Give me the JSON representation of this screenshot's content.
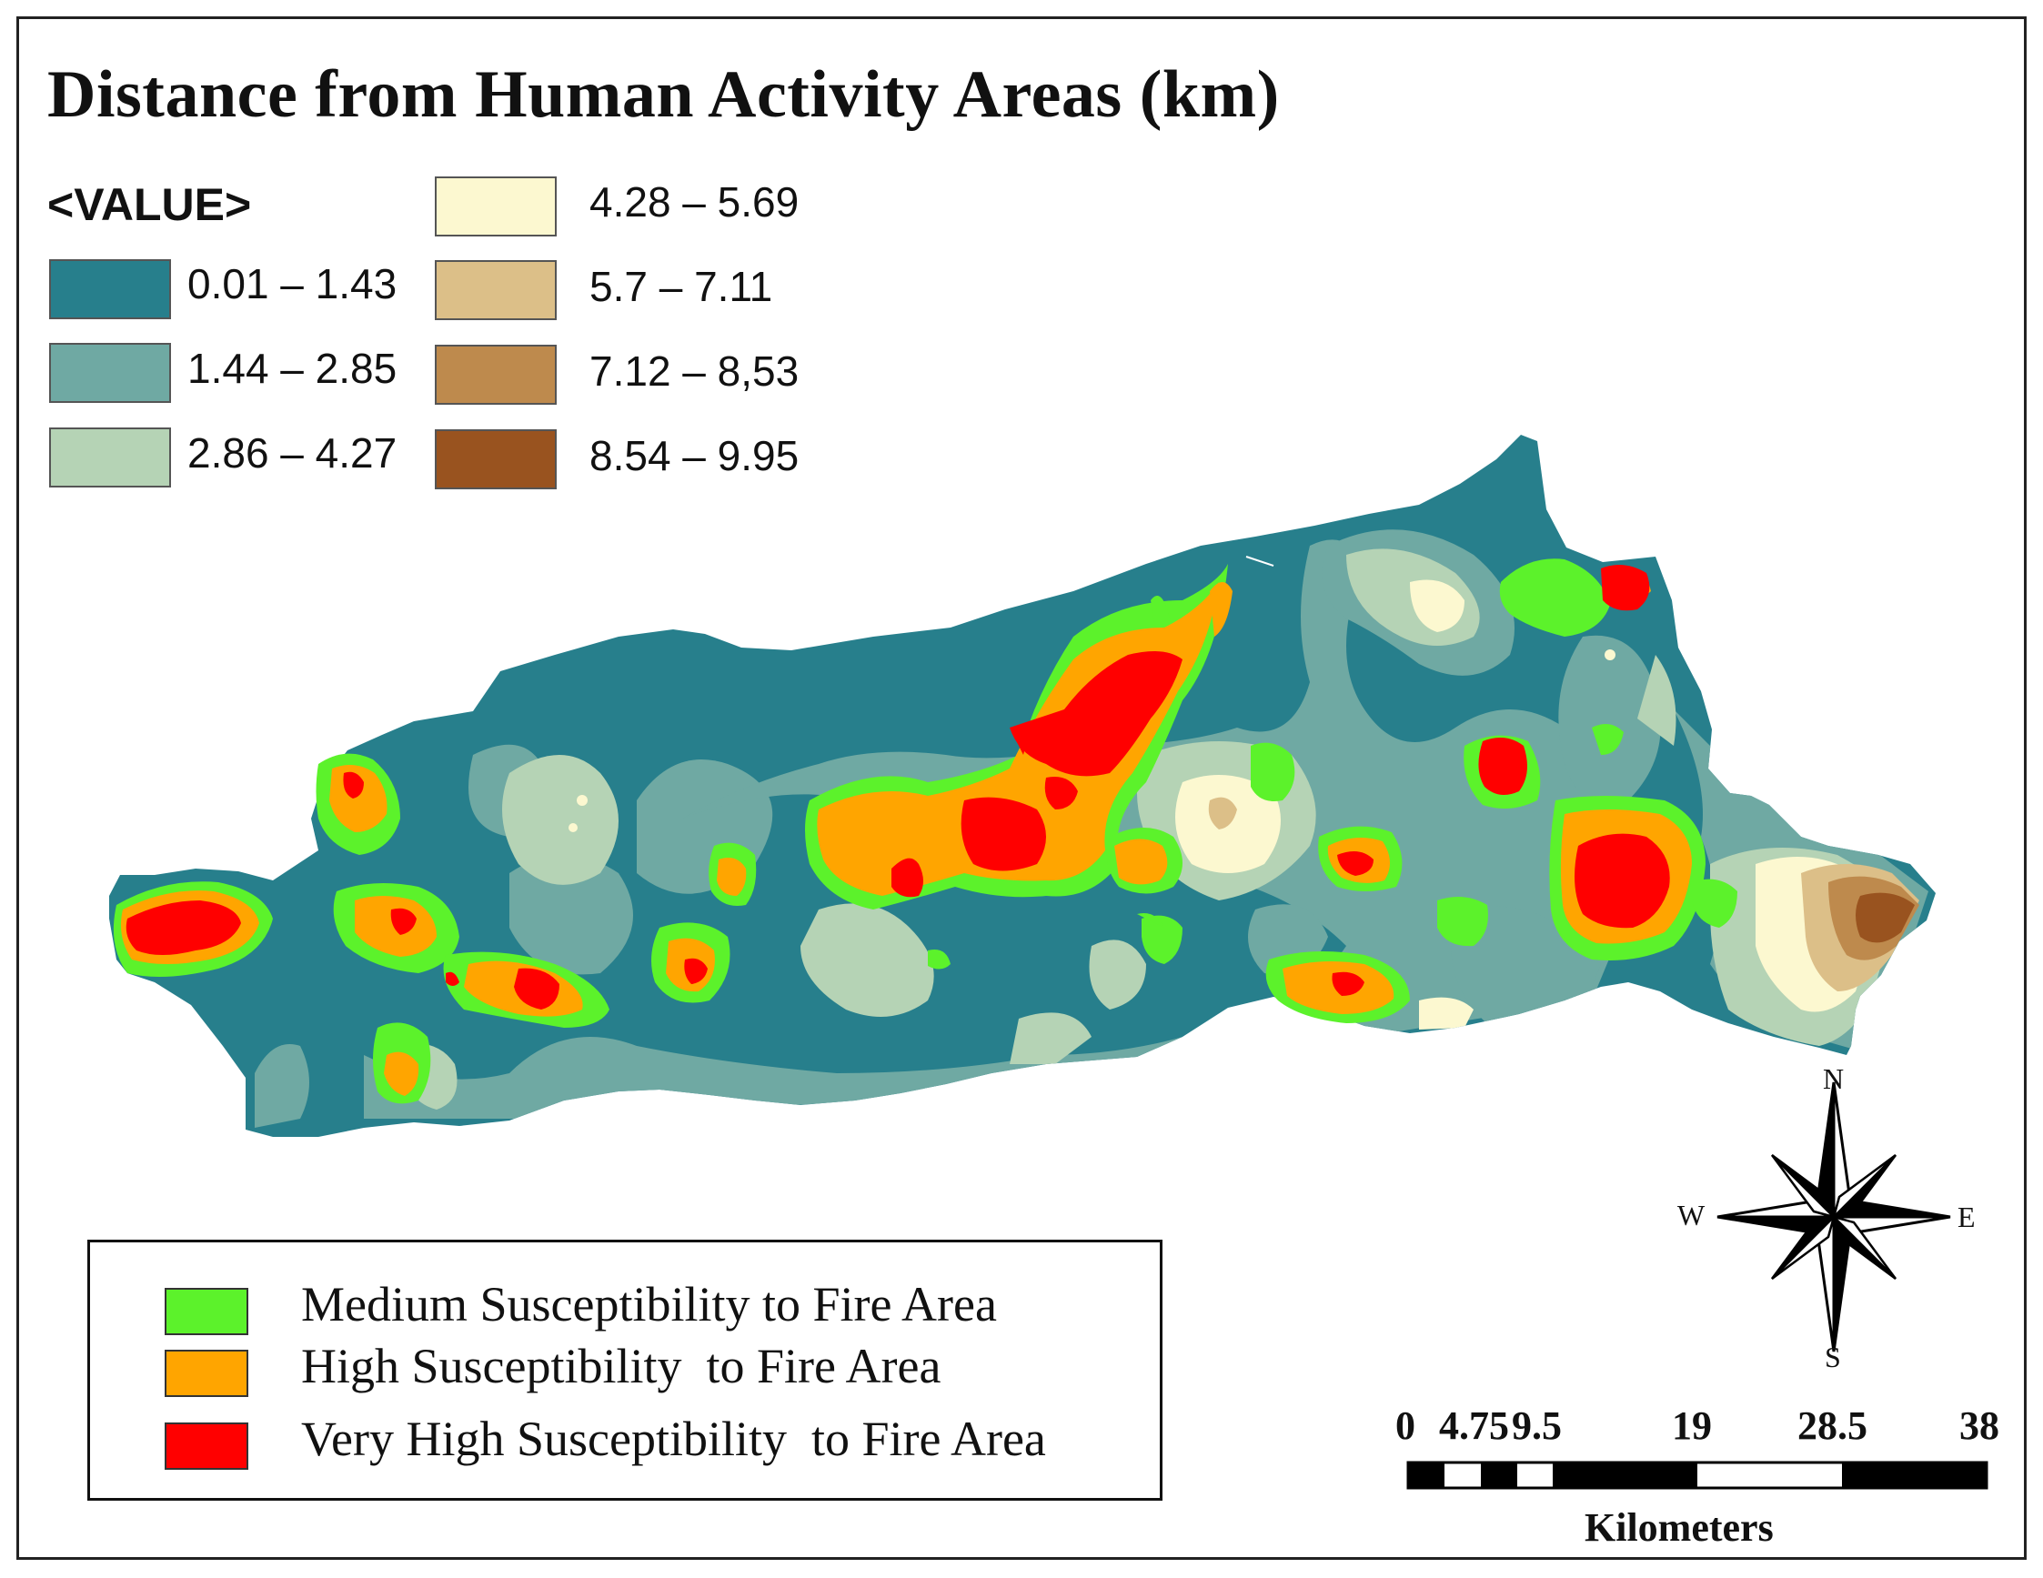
{
  "title": "Distance from Human Activity Areas (km)",
  "value_legend": {
    "heading": "<VALUE>",
    "classes": [
      {
        "label": "0.01 – 1.43",
        "color": "#277f8c"
      },
      {
        "label": "1.44 – 2.85",
        "color": "#6fa9a3"
      },
      {
        "label": "2.86 – 4.27",
        "color": "#b5d3b5"
      },
      {
        "label": "4.28 – 5.69",
        "color": "#fcf8d0"
      },
      {
        "label": "5.7 – 7.11",
        "color": "#dcbf88"
      },
      {
        "label": "7.12 – 8,53",
        "color": "#be8a4d"
      },
      {
        "label": "8.54 – 9.95",
        "color": "#99531f"
      }
    ]
  },
  "fire_legend": {
    "items": [
      {
        "label": "Medium Susceptibility to Fire Area",
        "color": "#5cf22b"
      },
      {
        "label": "High Susceptibility  to Fire Area",
        "color": "#ffa500"
      },
      {
        "label": "Very High Susceptibility  to Fire Area",
        "color": "#ff0000"
      }
    ]
  },
  "north_arrow": {
    "n": "N",
    "e": "E",
    "s": "S",
    "w": "W"
  },
  "scale_bar": {
    "ticks": [
      "0",
      "4.75",
      "9.5",
      "19",
      "28.5",
      "38"
    ],
    "unit": "Kilometers"
  }
}
